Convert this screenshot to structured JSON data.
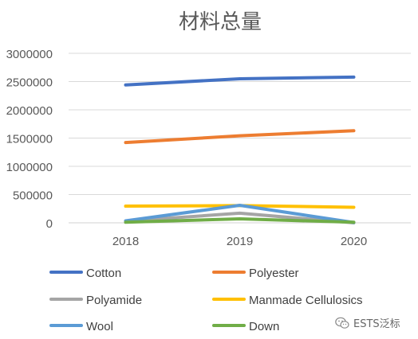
{
  "chart_data": {
    "type": "line",
    "title": "材料总量",
    "xlabel": "",
    "ylabel": "",
    "categories": [
      "2018",
      "2019",
      "2020"
    ],
    "ylim": [
      0,
      3000000
    ],
    "yticks": [
      0,
      500000,
      1000000,
      1500000,
      2000000,
      2500000,
      3000000
    ],
    "ytick_labels": [
      "0",
      "500000",
      "1000000",
      "1500000",
      "2000000",
      "2500000",
      "3000000"
    ],
    "grid": true,
    "legend_position": "bottom",
    "series": [
      {
        "name": "Cotton",
        "color": "#4472C4",
        "values": [
          2440000,
          2550000,
          2580000
        ]
      },
      {
        "name": "Polyester",
        "color": "#ED7D31",
        "values": [
          1420000,
          1540000,
          1630000
        ]
      },
      {
        "name": "Polyamide",
        "color": "#A5A5A5",
        "values": [
          30000,
          170000,
          0
        ]
      },
      {
        "name": "Manmade Cellulosics",
        "color": "#FFC000",
        "values": [
          295000,
          305000,
          275000
        ]
      },
      {
        "name": "Wool",
        "color": "#5B9BD5",
        "values": [
          35000,
          310000,
          5000
        ]
      },
      {
        "name": "Down",
        "color": "#70AD47",
        "values": [
          10000,
          70000,
          10000
        ]
      }
    ]
  },
  "watermark": {
    "text": "ESTS泛标",
    "icon": "wechat-icon"
  }
}
